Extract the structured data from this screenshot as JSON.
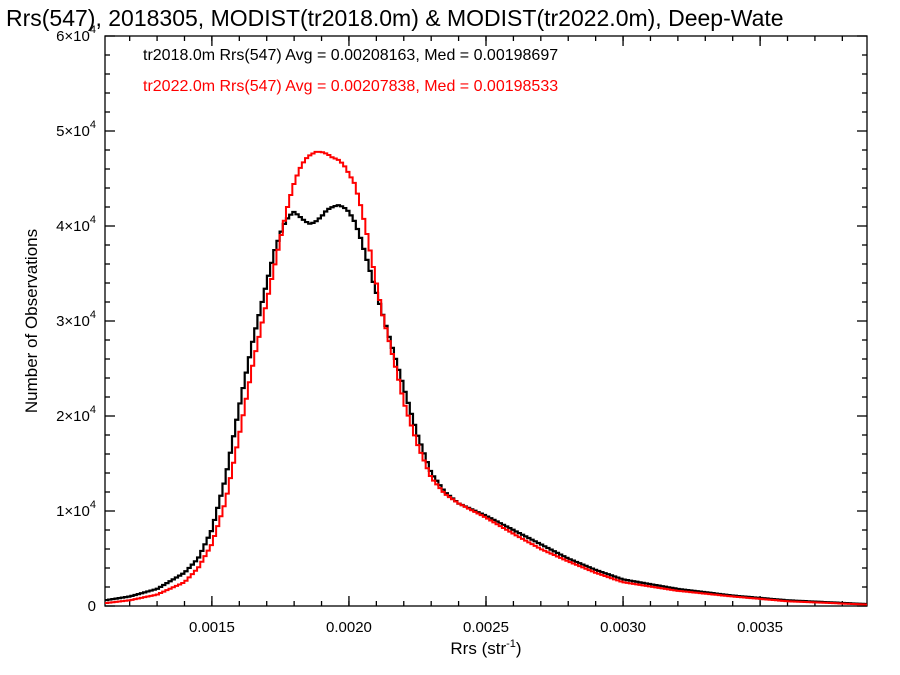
{
  "chart_data": {
    "type": "line",
    "title": "Rrs(547), 2018305, MODIST(tr2018.0m) & MODIST(tr2022.0m), Deep-Wate",
    "xlabel": {
      "base": "Rrs (str",
      "sup": "-1",
      "close": ")"
    },
    "ylabel": "Number of Observations",
    "xlim": [
      0.00111,
      0.00389
    ],
    "ylim": [
      0,
      60000
    ],
    "x_ticks": [
      {
        "value": 0.0015,
        "label": "0.0015"
      },
      {
        "value": 0.002,
        "label": "0.0020"
      },
      {
        "value": 0.0025,
        "label": "0.0025"
      },
      {
        "value": 0.003,
        "label": "0.0030"
      },
      {
        "value": 0.0035,
        "label": "0.0035"
      }
    ],
    "y_ticks": [
      {
        "value": 0,
        "mant": "0",
        "exp": ""
      },
      {
        "value": 10000,
        "mant": "1×10",
        "exp": "4"
      },
      {
        "value": 20000,
        "mant": "2×10",
        "exp": "4"
      },
      {
        "value": 30000,
        "mant": "3×10",
        "exp": "4"
      },
      {
        "value": 40000,
        "mant": "4×10",
        "exp": "4"
      },
      {
        "value": 50000,
        "mant": "5×10",
        "exp": "4"
      },
      {
        "value": 60000,
        "mant": "6×10",
        "exp": "4"
      }
    ],
    "series": [
      {
        "name": "tr2018.0m",
        "legend": "tr2018.0m Rrs(547) Avg = 0.00208163, Med = 0.00198697",
        "color": "#000000",
        "x": [
          0.00111,
          0.0012,
          0.0013,
          0.0014,
          0.00145,
          0.0015,
          0.00155,
          0.0016,
          0.00165,
          0.0017,
          0.00173,
          0.00176,
          0.00178,
          0.0018,
          0.00182,
          0.00184,
          0.00186,
          0.00188,
          0.0019,
          0.00192,
          0.00194,
          0.00196,
          0.00198,
          0.002,
          0.00202,
          0.00204,
          0.00206,
          0.00208,
          0.0021,
          0.00212,
          0.00215,
          0.00218,
          0.0022,
          0.00225,
          0.0023,
          0.00235,
          0.0024,
          0.0025,
          0.0026,
          0.0027,
          0.0028,
          0.0029,
          0.003,
          0.0032,
          0.0034,
          0.0036,
          0.00389
        ],
        "y": [
          600,
          1000,
          1800,
          3500,
          5000,
          8000,
          13500,
          21000,
          28000,
          34000,
          37500,
          40000,
          41000,
          41500,
          41000,
          40500,
          40200,
          40500,
          41000,
          41700,
          42000,
          42200,
          42000,
          41500,
          40500,
          39000,
          37000,
          35000,
          33000,
          31000,
          28000,
          25000,
          23000,
          18000,
          14000,
          12000,
          10800,
          9500,
          8000,
          6500,
          5000,
          3800,
          2800,
          1800,
          1100,
          600,
          200
        ]
      },
      {
        "name": "tr2022.0m",
        "legend": "tr2022.0m Rrs(547) Avg = 0.00207838, Med = 0.00198533",
        "color": "#ff0000",
        "x": [
          0.00111,
          0.0012,
          0.0013,
          0.0014,
          0.00145,
          0.0015,
          0.00155,
          0.0016,
          0.00165,
          0.0017,
          0.00173,
          0.00176,
          0.00178,
          0.0018,
          0.00182,
          0.00184,
          0.00186,
          0.00188,
          0.0019,
          0.00192,
          0.00194,
          0.00196,
          0.00198,
          0.002,
          0.00202,
          0.00204,
          0.00206,
          0.00208,
          0.0021,
          0.00212,
          0.00215,
          0.00218,
          0.0022,
          0.00225,
          0.0023,
          0.00235,
          0.0024,
          0.0025,
          0.0026,
          0.0027,
          0.0028,
          0.0029,
          0.003,
          0.0032,
          0.0034,
          0.0036,
          0.00389
        ],
        "y": [
          300,
          600,
          1200,
          2500,
          4000,
          6500,
          11000,
          18000,
          25500,
          32000,
          36000,
          40000,
          42500,
          44500,
          46000,
          47000,
          47500,
          47800,
          47800,
          47600,
          47200,
          47000,
          46500,
          45500,
          44500,
          42500,
          40000,
          37000,
          34000,
          31000,
          27500,
          24000,
          21500,
          17000,
          13500,
          11800,
          10800,
          9300,
          7600,
          6000,
          4700,
          3500,
          2500,
          1600,
          1000,
          500,
          150
        ]
      }
    ]
  }
}
